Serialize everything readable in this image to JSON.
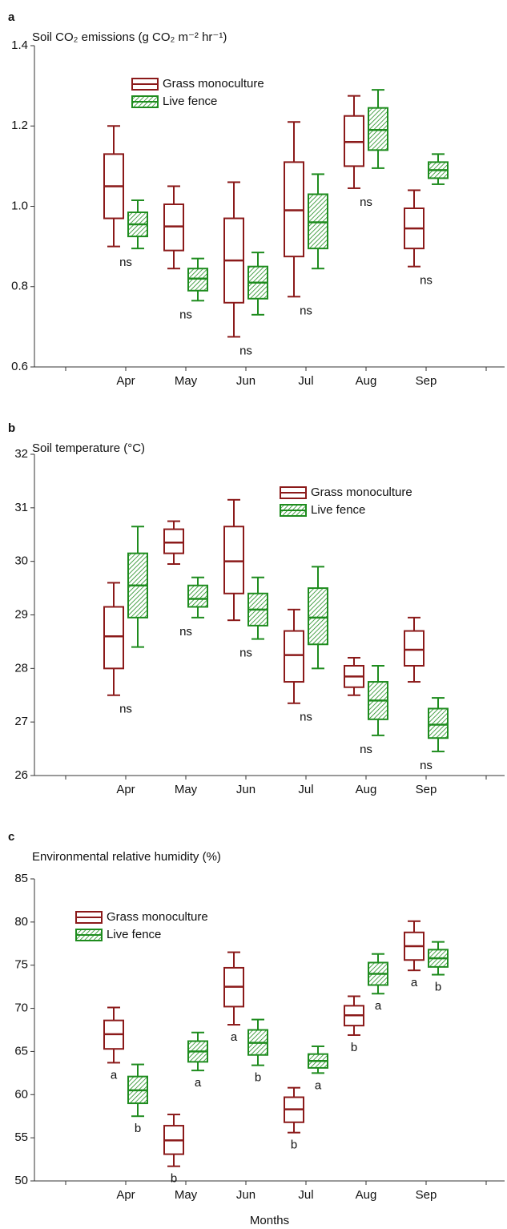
{
  "chart_data": [
    {
      "type": "box",
      "panel": "a",
      "title": "Soil CO₂ emissions (g CO₂ m⁻² hr⁻¹)",
      "categories": [
        "Apr",
        "May",
        "Jun",
        "Jul",
        "Aug",
        "Sep"
      ],
      "series": [
        {
          "name": "Grass monoculture",
          "color": "#8b1a1a",
          "hatch": false,
          "max": [
            1.2,
            1.05,
            1.06,
            1.21,
            1.275,
            1.04
          ],
          "q3": [
            1.13,
            1.005,
            0.97,
            1.11,
            1.225,
            0.995
          ],
          "median": [
            1.05,
            0.95,
            0.865,
            0.99,
            1.16,
            0.945
          ],
          "q1": [
            0.97,
            0.89,
            0.76,
            0.875,
            1.1,
            0.895
          ],
          "min": [
            0.9,
            0.845,
            0.675,
            0.775,
            1.045,
            0.85
          ]
        },
        {
          "name": "Live fence",
          "color": "#1e8c1e",
          "hatch": true,
          "max": [
            1.015,
            0.87,
            0.885,
            1.08,
            1.29,
            1.13
          ],
          "q3": [
            0.985,
            0.845,
            0.85,
            1.03,
            1.245,
            1.11
          ],
          "median": [
            0.955,
            0.82,
            0.81,
            0.96,
            1.19,
            1.09
          ],
          "q1": [
            0.925,
            0.79,
            0.77,
            0.895,
            1.14,
            1.07
          ],
          "min": [
            0.895,
            0.765,
            0.73,
            0.845,
            1.095,
            1.055
          ]
        }
      ],
      "annotations": [
        "ns",
        "ns",
        "ns",
        "ns",
        "ns",
        "ns"
      ],
      "ylim": [
        0.6,
        1.4
      ],
      "yticks": [
        0.6,
        0.8,
        {
          "value": 1,
          "label": "1.0"
        },
        1.2,
        1.4
      ],
      "legend": "upper center"
    },
    {
      "type": "box",
      "panel": "b",
      "title": "Soil temperature (°C)",
      "categories": [
        "Apr",
        "May",
        "Jun",
        "Jul",
        "Aug",
        "Sep"
      ],
      "series": [
        {
          "name": "Grass monoculture",
          "color": "#8b1a1a",
          "hatch": false,
          "max": [
            29.6,
            30.75,
            31.15,
            29.1,
            28.2,
            28.95
          ],
          "q3": [
            29.15,
            30.6,
            30.65,
            28.7,
            28.05,
            28.7
          ],
          "median": [
            28.6,
            30.35,
            30.0,
            28.25,
            27.85,
            28.35
          ],
          "q1": [
            28.0,
            30.15,
            29.4,
            27.75,
            27.65,
            28.05
          ],
          "min": [
            27.5,
            29.95,
            28.9,
            27.35,
            27.5,
            27.75
          ]
        },
        {
          "name": "Live fence",
          "color": "#1e8c1e",
          "hatch": true,
          "max": [
            30.65,
            29.7,
            29.7,
            29.9,
            28.05,
            27.45
          ],
          "q3": [
            30.15,
            29.55,
            29.4,
            29.5,
            27.75,
            27.25
          ],
          "median": [
            29.55,
            29.3,
            29.1,
            28.95,
            27.4,
            26.95
          ],
          "q1": [
            28.95,
            29.15,
            28.8,
            28.45,
            27.05,
            26.7
          ],
          "min": [
            28.4,
            28.95,
            28.55,
            28.0,
            26.75,
            26.45
          ]
        }
      ],
      "annotations": [
        "ns",
        "ns",
        "ns",
        "ns",
        "ns",
        "ns"
      ],
      "ylim": [
        26,
        32
      ],
      "yticks": [
        26,
        27,
        28,
        29,
        30,
        31,
        32
      ],
      "legend": "upper right"
    },
    {
      "type": "box",
      "panel": "c",
      "title": "Environmental relative humidity (%)",
      "xlabel": "Months",
      "categories": [
        "Apr",
        "May",
        "Jun",
        "Jul",
        "Aug",
        "Sep"
      ],
      "series": [
        {
          "name": "Grass monoculture",
          "color": "#8b1a1a",
          "hatch": false,
          "max": [
            70.1,
            57.7,
            76.5,
            60.8,
            71.4,
            80.1
          ],
          "q3": [
            68.6,
            56.4,
            74.7,
            59.7,
            70.3,
            78.8
          ],
          "median": [
            67.0,
            54.7,
            72.5,
            58.3,
            69.2,
            77.2
          ],
          "q1": [
            65.3,
            53.1,
            70.2,
            56.8,
            68.0,
            75.6
          ],
          "min": [
            63.7,
            51.7,
            68.1,
            55.6,
            66.9,
            74.4
          ],
          "labels": [
            "a",
            "b",
            "a",
            "b",
            "b",
            "a"
          ]
        },
        {
          "name": "Live fence",
          "color": "#1e8c1e",
          "hatch": true,
          "max": [
            63.5,
            67.2,
            68.7,
            65.6,
            76.3,
            77.7
          ],
          "q3": [
            62.1,
            66.2,
            67.5,
            64.7,
            75.3,
            76.8
          ],
          "median": [
            60.5,
            65.0,
            66.0,
            63.9,
            74.0,
            75.8
          ],
          "q1": [
            59.0,
            63.8,
            64.6,
            63.1,
            72.7,
            74.8
          ],
          "min": [
            57.5,
            62.8,
            63.4,
            62.5,
            71.7,
            73.9
          ],
          "labels": [
            "b",
            "a",
            "b",
            "a",
            "a",
            "b"
          ]
        }
      ],
      "ylim": [
        50,
        85
      ],
      "yticks": [
        50,
        55,
        60,
        65,
        70,
        75,
        80,
        85
      ],
      "legend": "upper left"
    }
  ]
}
